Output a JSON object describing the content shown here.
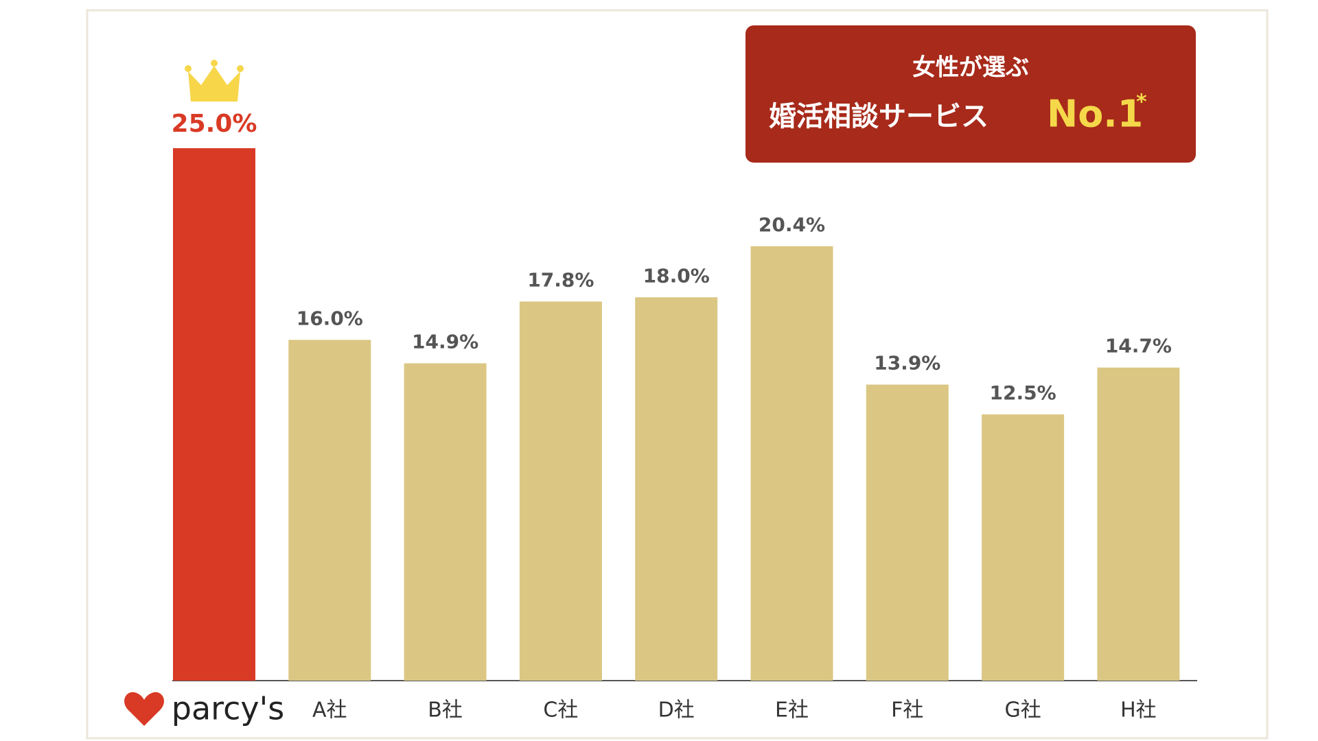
{
  "chart_data": {
    "type": "bar",
    "annotation": {
      "line1": "女性が選ぶ",
      "line2": "婚活相談サービス",
      "highlight": "No.1",
      "mark": "*"
    },
    "categories": [
      "parcy's",
      "A社",
      "B社",
      "C社",
      "D社",
      "E社",
      "F社",
      "G社",
      "H社"
    ],
    "values": [
      25.0,
      16.0,
      14.9,
      17.8,
      18.0,
      20.4,
      13.9,
      12.5,
      14.7
    ],
    "value_labels": [
      "25.0%",
      "16.0%",
      "14.9%",
      "17.8%",
      "18.0%",
      "20.4%",
      "13.9%",
      "12.5%",
      "14.7%"
    ],
    "colors": [
      "#d93a25",
      "#dbc783",
      "#dbc783",
      "#dbc783",
      "#dbc783",
      "#dbc783",
      "#dbc783",
      "#dbc783",
      "#dbc783"
    ],
    "ylim": [
      0,
      25
    ]
  }
}
